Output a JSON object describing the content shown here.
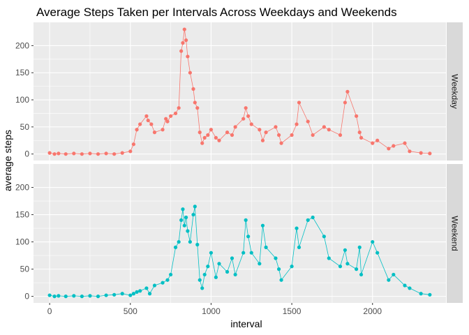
{
  "chart_data": {
    "type": "line",
    "title": "Average Steps Taken per Intervals Across Weekdays and Weekends",
    "xlabel": "interval",
    "ylabel": "average steps",
    "xlim": [
      -100,
      2455
    ],
    "ylim": [
      -12,
      243
    ],
    "x_ticks": [
      0,
      500,
      1000,
      1500,
      2000
    ],
    "y_ticks": [
      0,
      50,
      100,
      150,
      200
    ],
    "grid": true,
    "panel_background": "#ebebeb",
    "strip_background": "#d9d9d9",
    "series": [
      {
        "name": "Weekday",
        "color": "#F8766D",
        "x": [
          0,
          30,
          55,
          100,
          150,
          200,
          250,
          300,
          350,
          400,
          450,
          500,
          520,
          540,
          560,
          600,
          610,
          630,
          650,
          700,
          720,
          730,
          750,
          780,
          800,
          815,
          825,
          835,
          845,
          855,
          870,
          890,
          900,
          915,
          930,
          945,
          960,
          980,
          1000,
          1030,
          1050,
          1100,
          1130,
          1150,
          1200,
          1215,
          1230,
          1250,
          1300,
          1320,
          1340,
          1400,
          1420,
          1435,
          1500,
          1530,
          1545,
          1600,
          1630,
          1700,
          1730,
          1800,
          1830,
          1845,
          1900,
          1920,
          1930,
          2000,
          2030,
          2100,
          2130,
          2200,
          2230,
          2300,
          2355
        ],
        "y": [
          2,
          0,
          1,
          0,
          1,
          0,
          1,
          0,
          1,
          0,
          2,
          5,
          18,
          45,
          55,
          70,
          62,
          55,
          40,
          45,
          65,
          60,
          70,
          75,
          85,
          190,
          205,
          230,
          210,
          180,
          150,
          120,
          95,
          85,
          40,
          20,
          30,
          35,
          45,
          30,
          25,
          40,
          35,
          50,
          65,
          85,
          70,
          55,
          45,
          25,
          40,
          50,
          35,
          20,
          35,
          55,
          95,
          60,
          35,
          50,
          45,
          35,
          95,
          115,
          70,
          40,
          30,
          20,
          25,
          10,
          15,
          20,
          5,
          2,
          1
        ]
      },
      {
        "name": "Weekend",
        "color": "#00BFC4",
        "x": [
          0,
          30,
          55,
          100,
          150,
          200,
          250,
          300,
          350,
          400,
          450,
          500,
          520,
          540,
          560,
          600,
          620,
          650,
          700,
          730,
          750,
          780,
          800,
          815,
          825,
          835,
          845,
          855,
          870,
          890,
          900,
          915,
          930,
          945,
          960,
          980,
          1000,
          1030,
          1050,
          1100,
          1130,
          1150,
          1200,
          1215,
          1230,
          1250,
          1300,
          1320,
          1340,
          1400,
          1420,
          1435,
          1500,
          1530,
          1545,
          1600,
          1630,
          1700,
          1730,
          1800,
          1830,
          1845,
          1900,
          1920,
          1930,
          2000,
          2030,
          2100,
          2130,
          2200,
          2230,
          2300,
          2355
        ],
        "y": [
          2,
          0,
          1,
          0,
          1,
          0,
          1,
          0,
          2,
          3,
          5,
          2,
          5,
          8,
          10,
          15,
          5,
          20,
          25,
          30,
          40,
          90,
          100,
          140,
          160,
          130,
          145,
          120,
          100,
          150,
          165,
          95,
          30,
          15,
          40,
          55,
          80,
          35,
          60,
          45,
          70,
          40,
          80,
          140,
          110,
          80,
          60,
          130,
          90,
          70,
          50,
          30,
          55,
          125,
          90,
          140,
          145,
          110,
          70,
          55,
          85,
          60,
          50,
          90,
          40,
          100,
          80,
          30,
          40,
          20,
          15,
          5,
          3
        ]
      }
    ]
  }
}
